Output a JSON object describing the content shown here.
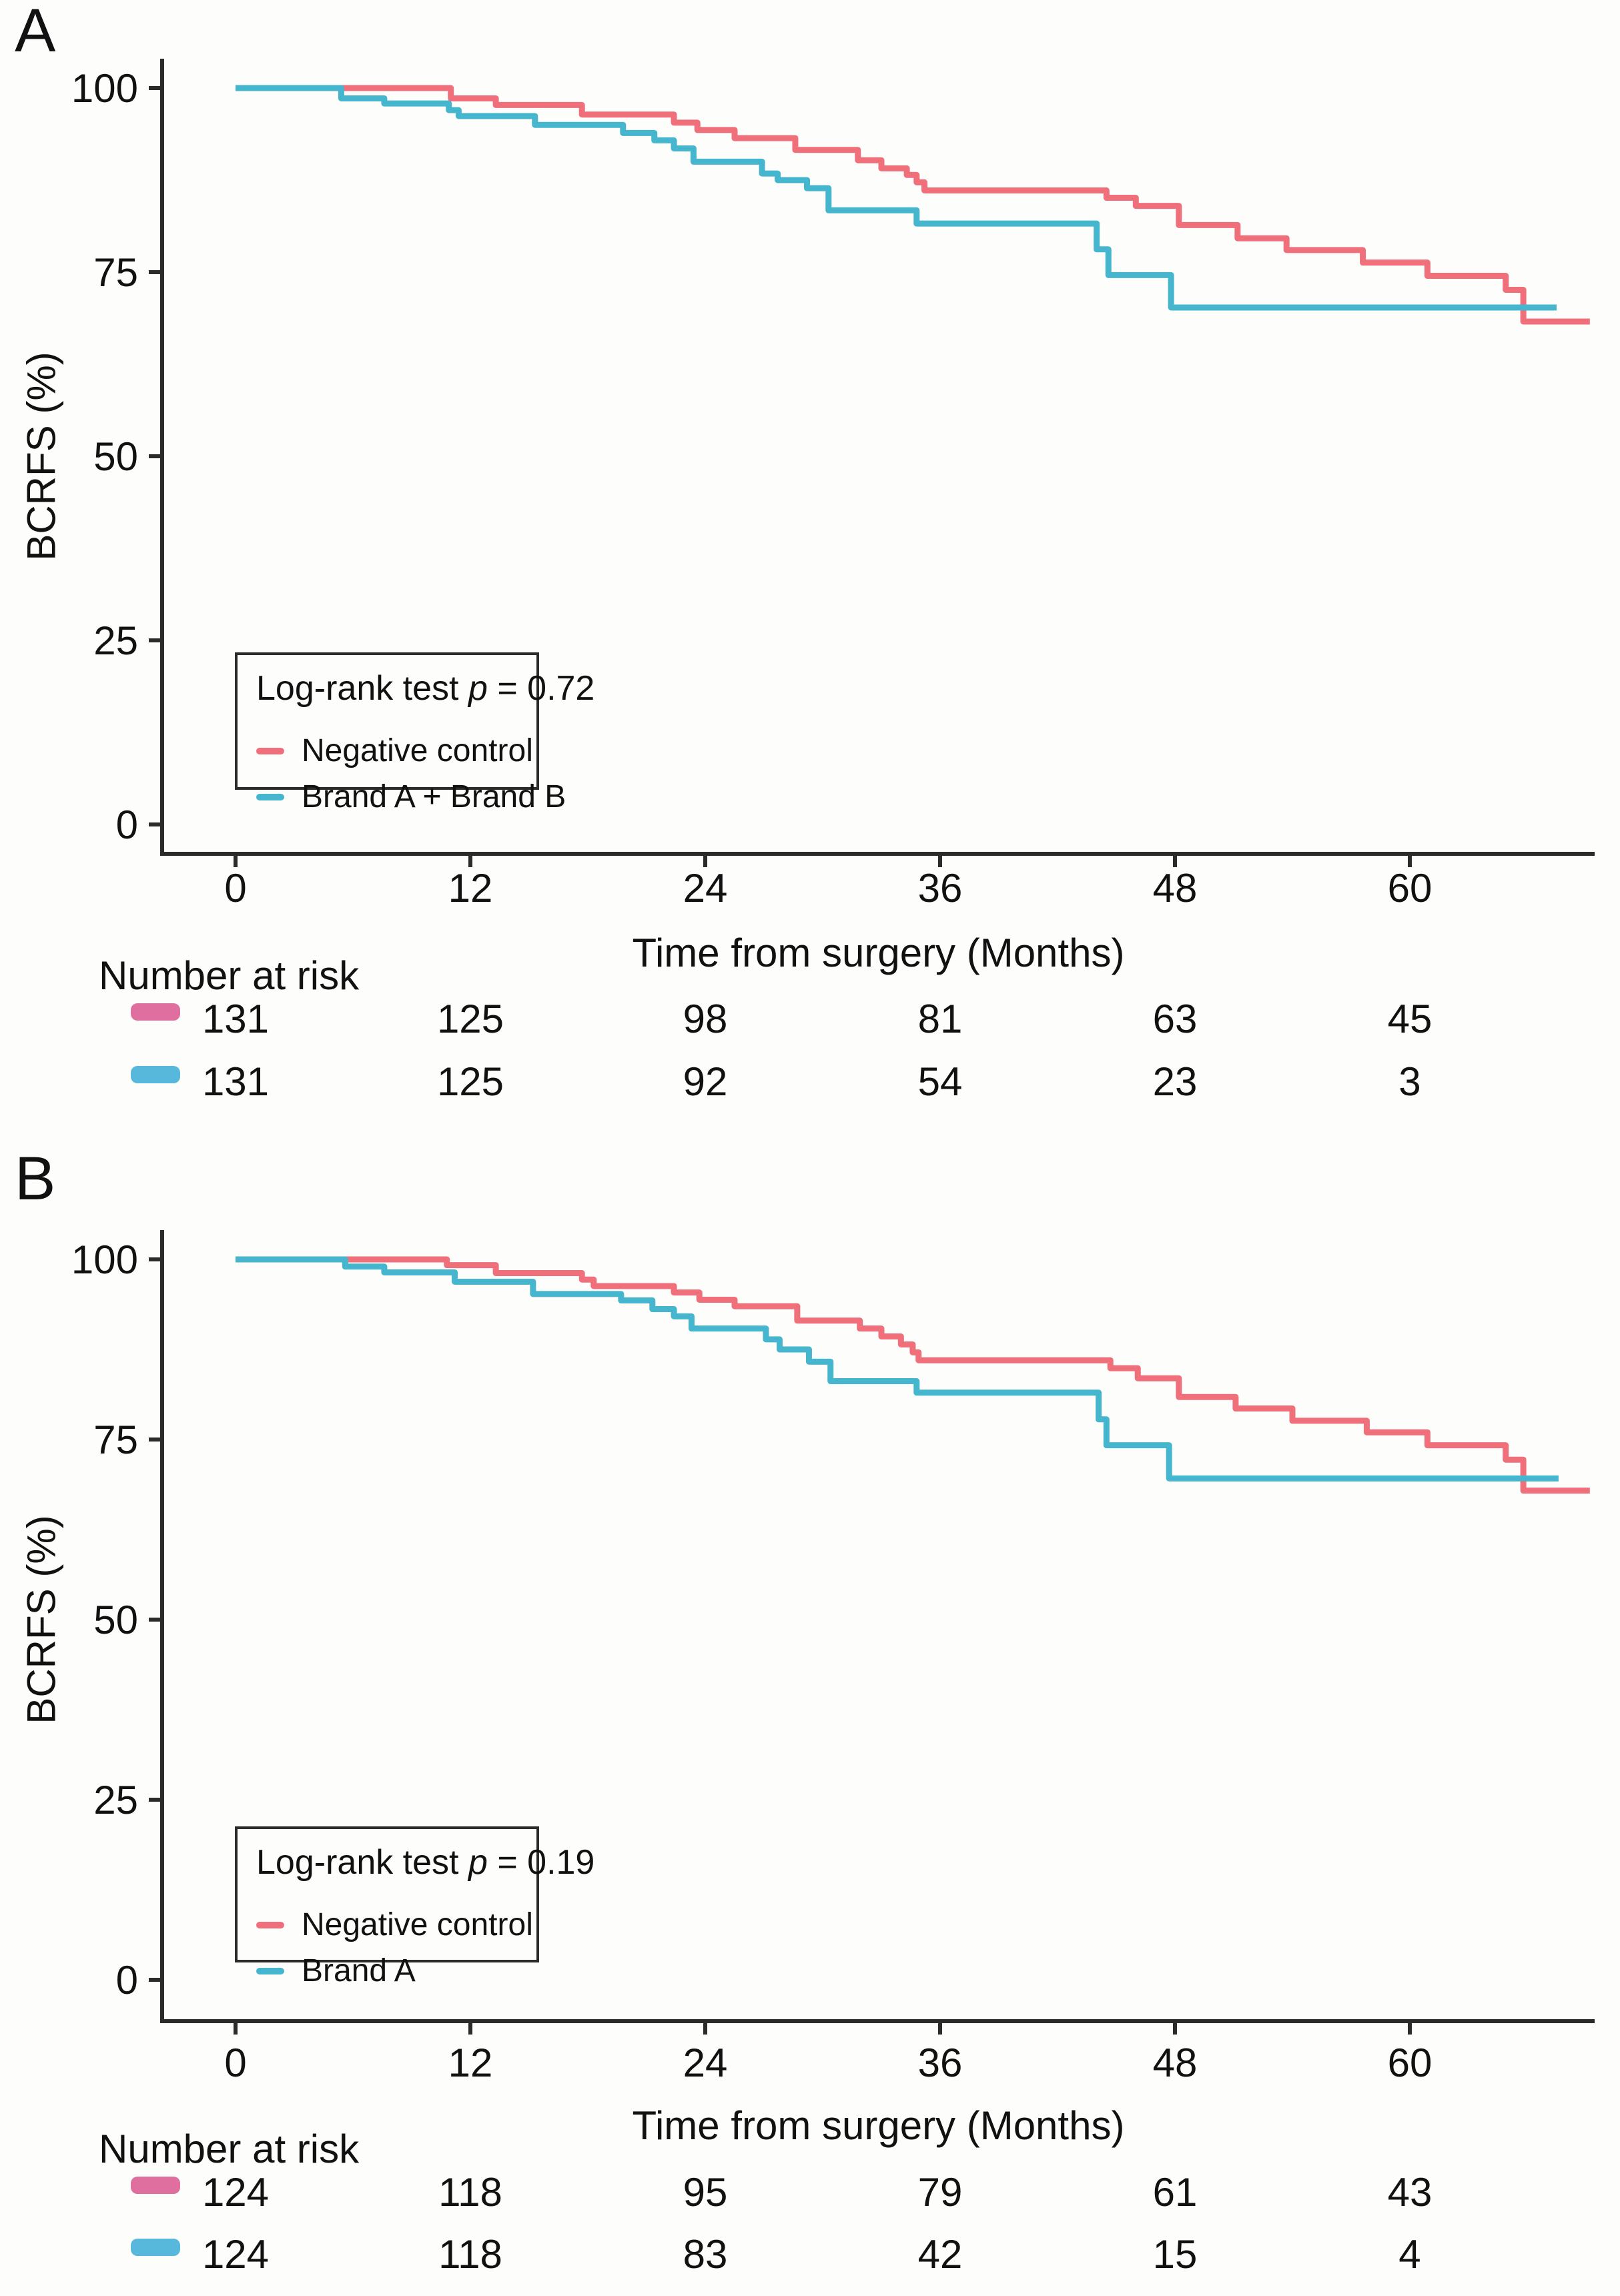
{
  "chart_data": [
    {
      "type": "line",
      "subtype": "kaplan-meier-step",
      "title": "A",
      "xlabel": "Time from surgery (Months)",
      "ylabel": "BCRFS (%)",
      "x_ticks": [
        0,
        12,
        24,
        36,
        48,
        60
      ],
      "y_ticks": [
        0,
        25,
        50,
        75,
        100
      ],
      "xlim": [
        -3.75,
        69.5
      ],
      "ylim": [
        0,
        100
      ],
      "grid": false,
      "legend": {
        "prefix": "Log-rank test",
        "pvar": "p",
        "pvalue": "= 0.72",
        "position": "bottom-left"
      },
      "series": [
        {
          "name": "Negative control",
          "color": "#EF6F7B",
          "start": [
            0,
            100
          ],
          "end_t": 69.2,
          "drops": [
            [
              11.0,
              98.6
            ],
            [
              13.3,
              97.7
            ],
            [
              17.7,
              96.4
            ],
            [
              22.4,
              95.3
            ],
            [
              23.6,
              94.3
            ],
            [
              25.5,
              93.2
            ],
            [
              28.6,
              91.6
            ],
            [
              31.8,
              90.2
            ],
            [
              33.0,
              89.1
            ],
            [
              34.3,
              88.2
            ],
            [
              34.8,
              87.2
            ],
            [
              35.2,
              86.1
            ],
            [
              44.5,
              85.1
            ],
            [
              46.0,
              84.0
            ],
            [
              48.2,
              81.4
            ],
            [
              51.2,
              79.6
            ],
            [
              53.7,
              78.0
            ],
            [
              57.6,
              76.3
            ],
            [
              60.9,
              74.5
            ],
            [
              64.9,
              72.6
            ],
            [
              65.8,
              68.3
            ]
          ]
        },
        {
          "name": "Brand A + Brand B",
          "color": "#46B6CE",
          "start": [
            0,
            100
          ],
          "end_t": 67.5,
          "drops": [
            [
              5.4,
              98.6
            ],
            [
              7.6,
              97.9
            ],
            [
              10.9,
              97.0
            ],
            [
              11.4,
              96.2
            ],
            [
              15.3,
              95.0
            ],
            [
              19.8,
              93.9
            ],
            [
              21.4,
              92.9
            ],
            [
              22.4,
              91.8
            ],
            [
              23.4,
              90.0
            ],
            [
              26.9,
              88.4
            ],
            [
              27.7,
              87.5
            ],
            [
              29.2,
              86.4
            ],
            [
              30.3,
              83.4
            ],
            [
              34.8,
              81.6
            ],
            [
              44.0,
              78.1
            ],
            [
              44.6,
              74.6
            ],
            [
              47.8,
              70.2
            ]
          ]
        }
      ],
      "risk_table": {
        "header": "Number at risk",
        "times": [
          0,
          12,
          24,
          36,
          48,
          60
        ],
        "rows": [
          {
            "key_color": "#DE6F9F",
            "values": [
              131,
              125,
              98,
              81,
              63,
              45
            ]
          },
          {
            "key_color": "#58B8DC",
            "values": [
              131,
              125,
              92,
              54,
              23,
              3
            ]
          }
        ]
      }
    },
    {
      "type": "line",
      "subtype": "kaplan-meier-step",
      "title": "B",
      "xlabel": "Time from surgery (Months)",
      "ylabel": "BCRFS (%)",
      "x_ticks": [
        0,
        12,
        24,
        36,
        48,
        60
      ],
      "y_ticks": [
        0,
        25,
        50,
        75,
        100
      ],
      "xlim": [
        -3.75,
        69.5
      ],
      "ylim": [
        0,
        100
      ],
      "grid": false,
      "legend": {
        "prefix": "Log-rank test",
        "pvar": "p",
        "pvalue": "= 0.19",
        "position": "bottom-left"
      },
      "series": [
        {
          "name": "Negative control",
          "color": "#EF6F7B",
          "start": [
            0,
            100
          ],
          "end_t": 69.2,
          "drops": [
            [
              10.8,
              99.2
            ],
            [
              13.3,
              98.1
            ],
            [
              17.7,
              97.2
            ],
            [
              18.3,
              96.3
            ],
            [
              22.4,
              95.4
            ],
            [
              23.7,
              94.4
            ],
            [
              25.5,
              93.5
            ],
            [
              28.7,
              91.5
            ],
            [
              31.9,
              90.4
            ],
            [
              33.0,
              89.3
            ],
            [
              34.0,
              88.2
            ],
            [
              34.6,
              87.1
            ],
            [
              34.9,
              86.0
            ],
            [
              44.7,
              84.9
            ],
            [
              46.1,
              83.5
            ],
            [
              48.2,
              80.9
            ],
            [
              51.1,
              79.3
            ],
            [
              54.0,
              77.6
            ],
            [
              57.8,
              76.0
            ],
            [
              60.9,
              74.2
            ],
            [
              64.9,
              72.2
            ],
            [
              65.8,
              67.9
            ]
          ]
        },
        {
          "name": "Brand A",
          "color": "#46B6CE",
          "start": [
            0,
            100
          ],
          "end_t": 67.6,
          "drops": [
            [
              5.6,
              99.0
            ],
            [
              7.6,
              98.2
            ],
            [
              11.2,
              96.9
            ],
            [
              15.2,
              95.2
            ],
            [
              19.7,
              94.3
            ],
            [
              21.3,
              93.1
            ],
            [
              22.4,
              92.1
            ],
            [
              23.3,
              90.4
            ],
            [
              27.1,
              88.9
            ],
            [
              27.8,
              87.5
            ],
            [
              29.3,
              85.8
            ],
            [
              30.4,
              83.1
            ],
            [
              34.8,
              81.5
            ],
            [
              44.1,
              77.8
            ],
            [
              44.5,
              74.2
            ],
            [
              47.7,
              69.6
            ]
          ]
        }
      ],
      "risk_table": {
        "header": "Number at risk",
        "times": [
          0,
          12,
          24,
          36,
          48,
          60
        ],
        "rows": [
          {
            "key_color": "#DE6F9F",
            "values": [
              124,
              118,
              95,
              79,
              61,
              43
            ]
          },
          {
            "key_color": "#58B8DC",
            "values": [
              124,
              118,
              83,
              42,
              15,
              4
            ]
          }
        ]
      }
    }
  ],
  "colors": {
    "curve_red": "#EF6F7B",
    "curve_blue": "#46B6CE",
    "risk_key_red": "#DE6F9F",
    "risk_key_blue": "#58B8DC",
    "axis": "#2b2b2b",
    "text": "#111111",
    "background": "#fdfdfb"
  }
}
